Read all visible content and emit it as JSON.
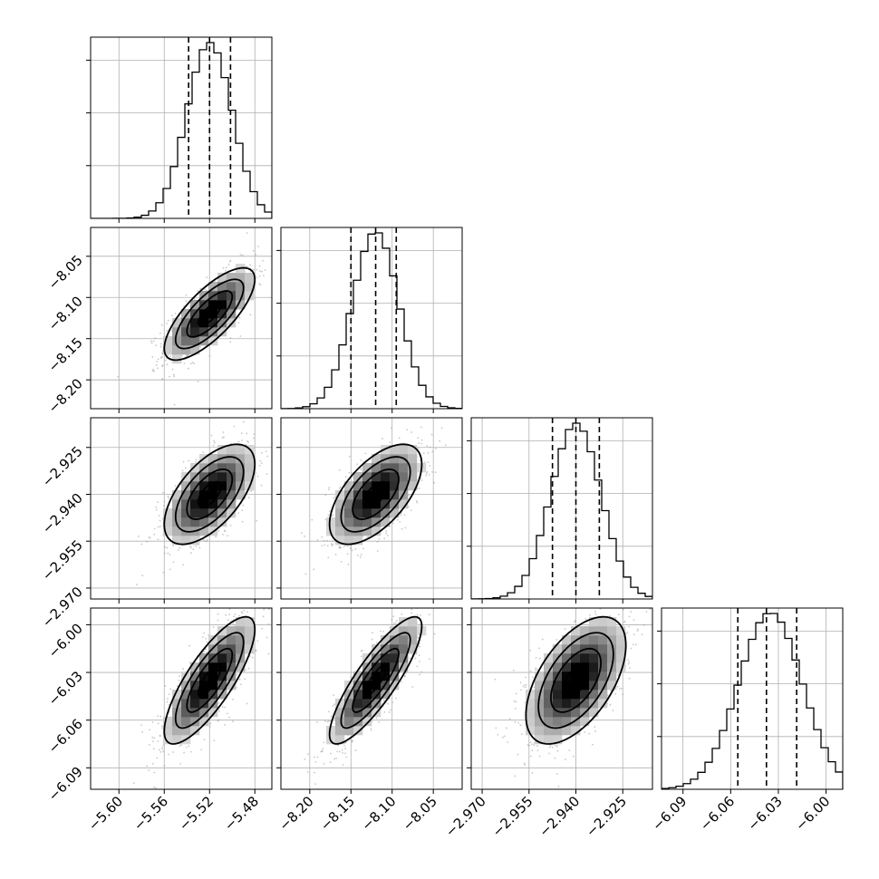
{
  "chart_data": {
    "type": "corner",
    "parameters": [
      {
        "index": 0,
        "mean": -5.52,
        "sd": 0.02,
        "range": [
          -5.625,
          -5.465
        ],
        "ticks": [
          -5.6,
          -5.56,
          -5.52,
          -5.48
        ],
        "tick_labels": [
          "−5.60",
          "−5.56",
          "−5.52",
          "−5.48"
        ],
        "quantiles": [
          -5.5385,
          -5.52,
          -5.5015
        ]
      },
      {
        "index": 1,
        "mean": -8.12,
        "sd": 0.028,
        "range": [
          -8.235,
          -8.015
        ],
        "ticks": [
          -8.2,
          -8.15,
          -8.1,
          -8.05
        ],
        "tick_labels": [
          "−8.20",
          "−8.15",
          "−8.10",
          "−8.05"
        ],
        "quantiles": [
          -8.15,
          -8.12,
          -8.095
        ]
      },
      {
        "index": 2,
        "mean": -2.94,
        "sd": 0.008,
        "range": [
          -2.9735,
          -2.9155
        ],
        "ticks": [
          -2.97,
          -2.955,
          -2.94,
          -2.925
        ],
        "tick_labels": [
          "−2.970",
          "−2.955",
          "−2.940",
          "−2.925"
        ],
        "quantiles": [
          -2.9475,
          -2.94,
          -2.9325
        ]
      },
      {
        "index": 3,
        "mean": -6.035,
        "sd": 0.02,
        "range": [
          -6.1035,
          -5.9895
        ],
        "ticks": [
          -6.09,
          -6.06,
          -6.03,
          -6.0
        ],
        "tick_labels": [
          "−6.09",
          "−6.06",
          "−6.03",
          "−6.00"
        ],
        "quantiles": [
          -6.0555,
          -6.0375,
          -6.0185
        ]
      }
    ],
    "correlations": [
      [
        1.0,
        0.75,
        0.6,
        0.8
      ],
      [
        0.75,
        1.0,
        0.6,
        0.85
      ],
      [
        0.6,
        0.6,
        1.0,
        0.55
      ],
      [
        0.8,
        0.85,
        0.55,
        1.0
      ]
    ],
    "hist_normalized_tick_fractions": [
      0.3,
      0.6,
      0.9
    ],
    "contour_levels_sigma": [
      0.5,
      1.0,
      1.5,
      2.0
    ],
    "grid": true,
    "colors": {
      "lines": "#000000",
      "grid": "#b0b0b0",
      "scatter": "#9a9a9a",
      "background": "#ffffff"
    }
  }
}
